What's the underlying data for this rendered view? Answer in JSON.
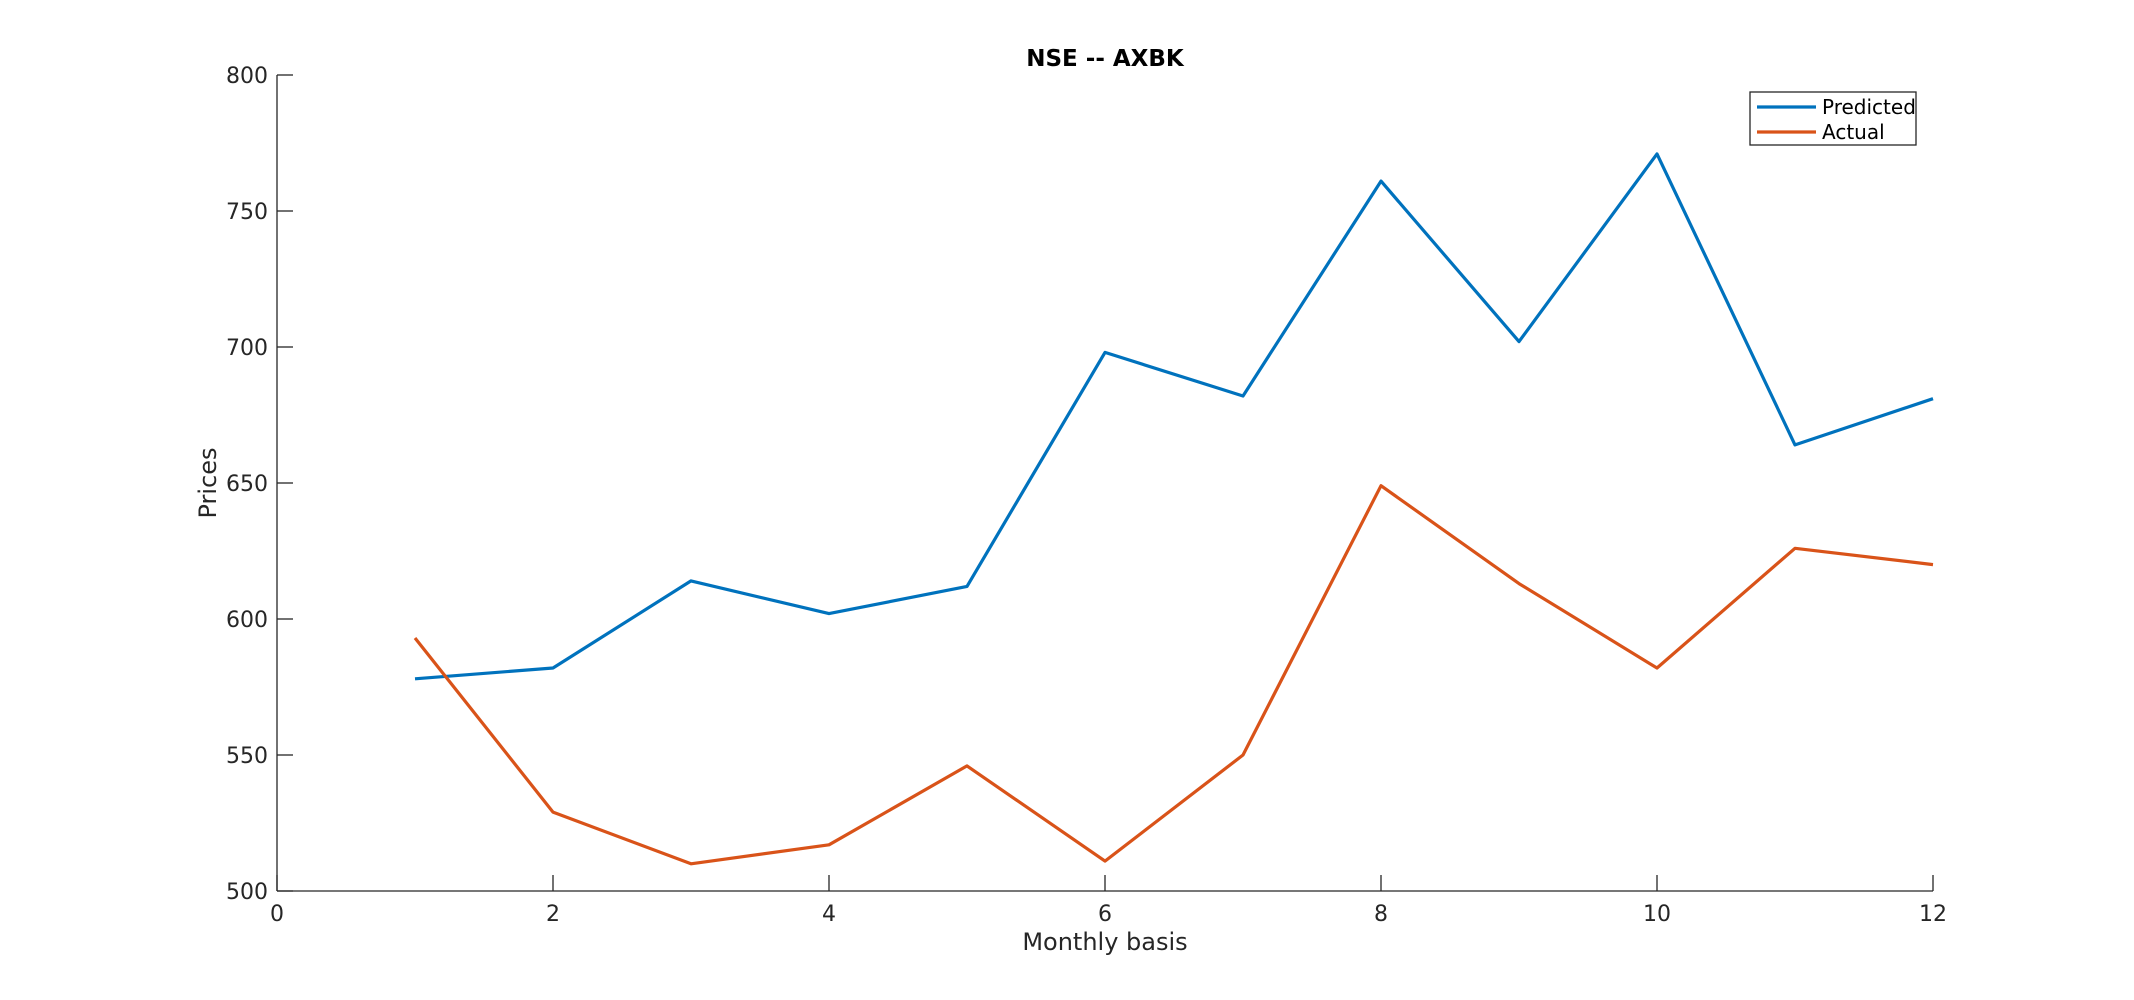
{
  "chart_data": {
    "type": "line",
    "title": "NSE -- AXBK",
    "xlabel": "Monthly basis",
    "ylabel": "Prices",
    "xlim": [
      0,
      12
    ],
    "ylim": [
      500,
      800
    ],
    "xticks": [
      0,
      2,
      4,
      6,
      8,
      10,
      12
    ],
    "yticks": [
      500,
      550,
      600,
      650,
      700,
      750,
      800
    ],
    "grid": false,
    "legend_position": "top-right",
    "x": [
      1,
      2,
      3,
      4,
      5,
      6,
      7,
      8,
      9,
      10,
      11,
      12
    ],
    "series": [
      {
        "name": "Predicted",
        "color": "#0072BD",
        "values": [
          578,
          582,
          614,
          602,
          612,
          698,
          682,
          761,
          702,
          771,
          664,
          681
        ]
      },
      {
        "name": "Actual",
        "color": "#D95319",
        "values": [
          593,
          529,
          510,
          517,
          546,
          511,
          550,
          649,
          613,
          582,
          626,
          620
        ]
      }
    ]
  }
}
